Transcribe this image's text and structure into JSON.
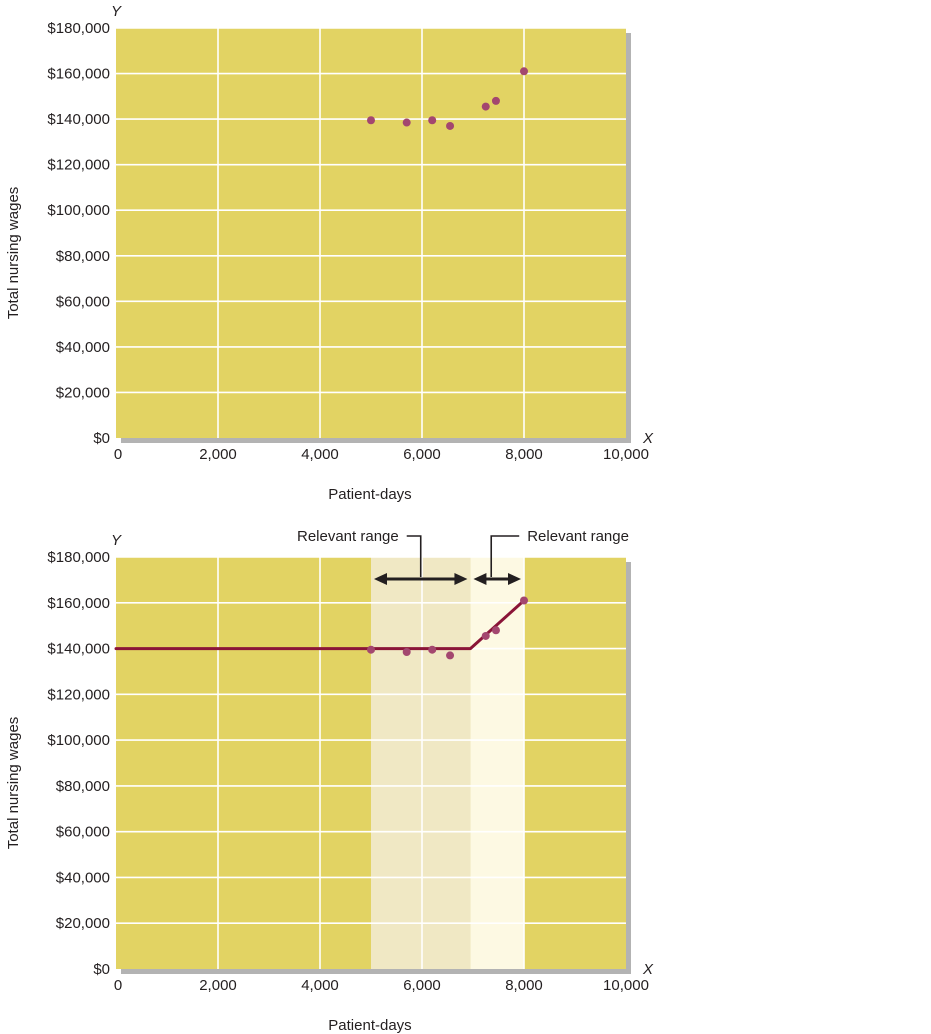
{
  "colors": {
    "plot_bg": "#e2d363",
    "grid": "#ffffff",
    "range1_band": "#f0e8c4",
    "range2_band": "#fdf9e3",
    "point": "#a3476f",
    "fit_line": "#8a1538",
    "shadow": "#b3b3b3"
  },
  "chart_data": [
    {
      "type": "scatter",
      "xlabel": "Patient-days",
      "ylabel": "Total nursing wages",
      "x_axis_letter": "X",
      "y_axis_letter": "Y",
      "xlim": [
        0,
        10000
      ],
      "ylim": [
        0,
        180000
      ],
      "x_ticks": [
        0,
        2000,
        4000,
        6000,
        8000,
        10000
      ],
      "x_tick_labels": [
        "0",
        "2,000",
        "4,000",
        "6,000",
        "8,000",
        "10,000"
      ],
      "y_ticks": [
        0,
        20000,
        40000,
        60000,
        80000,
        100000,
        120000,
        140000,
        160000,
        180000
      ],
      "y_tick_labels": [
        "$0",
        "$20,000",
        "$40,000",
        "$60,000",
        "$80,000",
        "$100,000",
        "$120,000",
        "$140,000",
        "$160,000",
        "$180,000"
      ],
      "grid": true,
      "points": [
        {
          "x": 5000,
          "y": 139500
        },
        {
          "x": 5700,
          "y": 138500
        },
        {
          "x": 6200,
          "y": 139500
        },
        {
          "x": 6550,
          "y": 137000
        },
        {
          "x": 7250,
          "y": 145500
        },
        {
          "x": 7450,
          "y": 148000
        },
        {
          "x": 8000,
          "y": 161000
        }
      ]
    },
    {
      "type": "scatter",
      "xlabel": "Patient-days",
      "ylabel": "Total nursing wages",
      "x_axis_letter": "X",
      "y_axis_letter": "Y",
      "xlim": [
        0,
        10000
      ],
      "ylim": [
        0,
        180000
      ],
      "x_ticks": [
        0,
        2000,
        4000,
        6000,
        8000,
        10000
      ],
      "x_tick_labels": [
        "0",
        "2,000",
        "4,000",
        "6,000",
        "8,000",
        "10,000"
      ],
      "y_ticks": [
        0,
        20000,
        40000,
        60000,
        80000,
        100000,
        120000,
        140000,
        160000,
        180000
      ],
      "y_tick_labels": [
        "$0",
        "$20,000",
        "$40,000",
        "$60,000",
        "$80,000",
        "$100,000",
        "$120,000",
        "$140,000",
        "$160,000",
        "$180,000"
      ],
      "grid": true,
      "points": [
        {
          "x": 5000,
          "y": 139500
        },
        {
          "x": 5700,
          "y": 138500
        },
        {
          "x": 6200,
          "y": 139500
        },
        {
          "x": 6550,
          "y": 137000
        },
        {
          "x": 7250,
          "y": 145500
        },
        {
          "x": 7450,
          "y": 148000
        },
        {
          "x": 8000,
          "y": 161000
        }
      ],
      "fit_line": [
        {
          "x": 0,
          "y": 140000
        },
        {
          "x": 6950,
          "y": 140000
        },
        {
          "x": 8000,
          "y": 161000
        }
      ],
      "relevant_ranges": [
        {
          "label": "Relevant range",
          "x_start": 5000,
          "x_end": 6950
        },
        {
          "label": "Relevant range",
          "x_start": 6950,
          "x_end": 8000
        }
      ]
    }
  ]
}
